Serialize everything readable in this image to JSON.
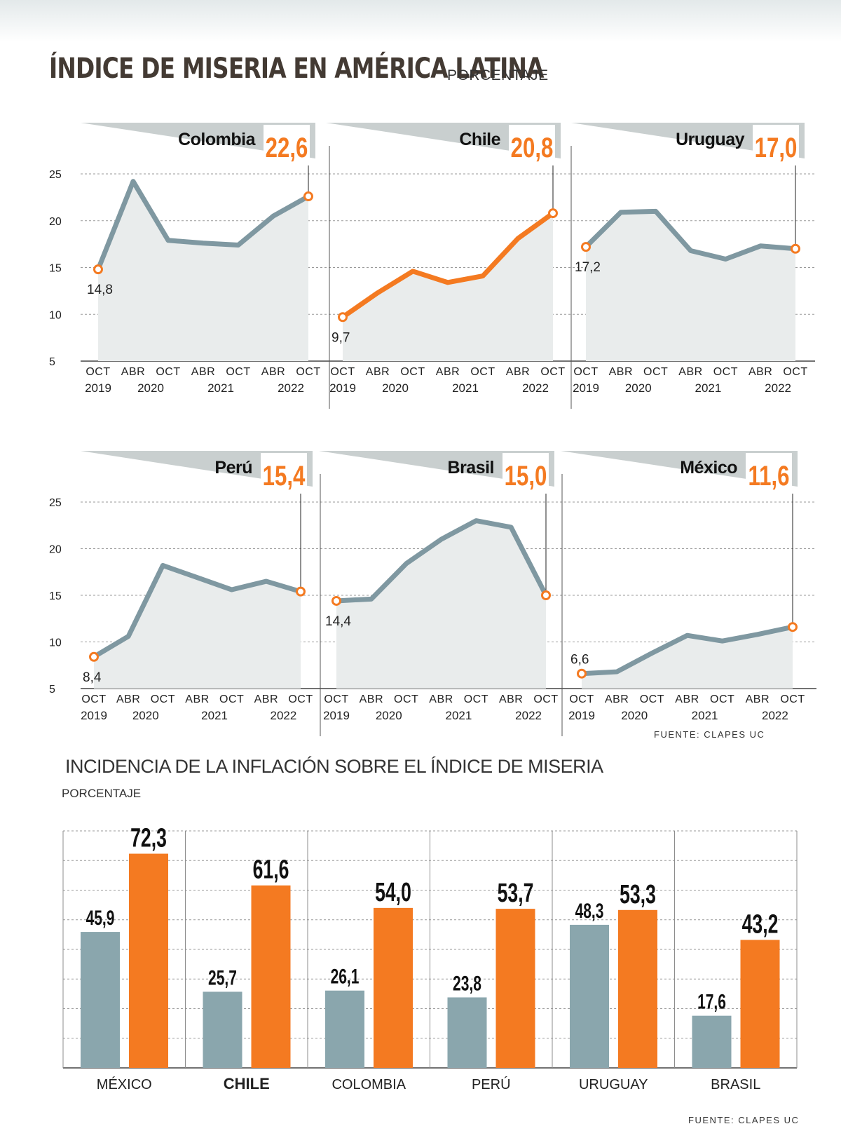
{
  "header": {
    "title": "ÍNDICE DE MISERIA EN AMÉRICA LATINA",
    "subtitle": "PORCENTAJE",
    "source_top": "FUENTE: CLAPES UC"
  },
  "colors": {
    "gray_series": "#7f98a1",
    "orange_series": "#f47a21",
    "area_fill": "#e9ecec",
    "banner": "#c9cfcf",
    "bar_gray": "#8aa6ad",
    "bar_orange": "#f47a21"
  },
  "chart_data": [
    {
      "type": "line",
      "panel": "Colombia",
      "current_value": "22,6",
      "x": [
        "OCT 2019",
        "ABR 2020",
        "OCT 2020",
        "ABR 2021",
        "OCT 2021",
        "ABR 2022",
        "OCT 2022"
      ],
      "x_tick_top": [
        "OCT",
        "ABR",
        "OCT",
        "ABR",
        "OCT",
        "ABR",
        "OCT"
      ],
      "x_tick_bottom": [
        "2019",
        "2020",
        "2021",
        "2022"
      ],
      "y_ticks": [
        "25",
        "20",
        "15",
        "10",
        "5"
      ],
      "ylim": [
        5,
        25
      ],
      "values": [
        14.8,
        24.2,
        17.9,
        17.6,
        17.4,
        20.5,
        22.6
      ],
      "start_label": "14,8",
      "line_color": "gray"
    },
    {
      "type": "line",
      "panel": "Chile",
      "current_value": "20,8",
      "x": [
        "OCT 2019",
        "ABR 2020",
        "OCT 2020",
        "ABR 2021",
        "OCT 2021",
        "ABR 2022",
        "OCT 2022"
      ],
      "x_tick_top": [
        "OCT",
        "ABR",
        "OCT",
        "ABR",
        "OCT",
        "ABR",
        "OCT"
      ],
      "x_tick_bottom": [
        "2019",
        "2020",
        "2021",
        "2022"
      ],
      "ylim": [
        5,
        25
      ],
      "values": [
        9.7,
        12.3,
        14.6,
        13.4,
        14.1,
        18.1,
        20.8
      ],
      "start_label": "9,7",
      "line_color": "orange"
    },
    {
      "type": "line",
      "panel": "Uruguay",
      "current_value": "17,0",
      "x": [
        "OCT 2019",
        "ABR 2020",
        "OCT 2020",
        "ABR 2021",
        "OCT 2021",
        "ABR 2022",
        "OCT 2022"
      ],
      "x_tick_top": [
        "OCT",
        "ABR",
        "OCT",
        "ABR",
        "OCT",
        "ABR",
        "OCT"
      ],
      "x_tick_bottom": [
        "2019",
        "2020",
        "2021",
        "2022"
      ],
      "ylim": [
        5,
        25
      ],
      "values": [
        17.2,
        20.9,
        21.0,
        16.8,
        15.9,
        17.3,
        17.0
      ],
      "start_label": "17,2",
      "line_color": "gray"
    },
    {
      "type": "line",
      "panel": "Perú",
      "current_value": "15,4",
      "x": [
        "OCT 2019",
        "ABR 2020",
        "OCT 2020",
        "ABR 2021",
        "OCT 2021",
        "ABR 2022",
        "OCT 2022"
      ],
      "x_tick_top": [
        "OCT",
        "ABR",
        "OCT",
        "ABR",
        "OCT",
        "ABR",
        "OCT"
      ],
      "x_tick_bottom": [
        "2019",
        "2020",
        "2021",
        "2022"
      ],
      "y_ticks": [
        "25",
        "20",
        "15",
        "10",
        "5"
      ],
      "ylim": [
        5,
        25
      ],
      "values": [
        8.4,
        10.6,
        18.2,
        16.9,
        15.6,
        16.5,
        15.4
      ],
      "start_label": "8,4",
      "line_color": "gray"
    },
    {
      "type": "line",
      "panel": "Brasil",
      "current_value": "15,0",
      "x": [
        "OCT 2019",
        "ABR 2020",
        "OCT 2020",
        "ABR 2021",
        "OCT 2021",
        "ABR 2022",
        "OCT 2022"
      ],
      "x_tick_top": [
        "OCT",
        "ABR",
        "OCT",
        "ABR",
        "OCT",
        "ABR",
        "OCT"
      ],
      "x_tick_bottom": [
        "2019",
        "2020",
        "2021",
        "2022"
      ],
      "ylim": [
        5,
        25
      ],
      "values": [
        14.4,
        14.6,
        18.4,
        21.0,
        23.0,
        22.3,
        15.0
      ],
      "start_label": "14,4",
      "line_color": "gray"
    },
    {
      "type": "line",
      "panel": "México",
      "current_value": "11,6",
      "x": [
        "OCT 2019",
        "ABR 2020",
        "OCT 2020",
        "ABR 2021",
        "OCT 2021",
        "ABR 2022",
        "OCT 2022"
      ],
      "x_tick_top": [
        "OCT",
        "ABR",
        "OCT",
        "ABR",
        "OCT",
        "ABR",
        "OCT"
      ],
      "x_tick_bottom": [
        "2019",
        "2020",
        "2021",
        "2022"
      ],
      "ylim": [
        5,
        25
      ],
      "values": [
        6.6,
        6.8,
        8.8,
        10.7,
        10.1,
        10.8,
        11.6
      ],
      "start_label": "6,6",
      "line_color": "gray"
    },
    {
      "type": "bar",
      "title": "INCIDENCIA DE LA INFLACIÓN SOBRE EL ÍNDICE DE MISERIA",
      "subtitle": "PORCENTAJE",
      "categories": [
        "MÉXICO",
        "CHILE",
        "COLOMBIA",
        "PERÚ",
        "URUGUAY",
        "BRASIL"
      ],
      "highlight_category": "CHILE",
      "series": [
        {
          "values": [
            45.9,
            25.7,
            26.1,
            23.8,
            48.3,
            17.6
          ],
          "labels": [
            "45,9",
            "25,7",
            "26,1",
            "23,8",
            "48,3",
            "17,6"
          ],
          "color": "gray"
        },
        {
          "values": [
            72.3,
            61.6,
            54.0,
            53.7,
            53.3,
            43.2
          ],
          "labels": [
            "72,3",
            "61,6",
            "54,0",
            "53,7",
            "53,3",
            "43,2"
          ],
          "color": "orange"
        }
      ],
      "ylim": [
        0,
        80
      ],
      "source": "FUENTE: CLAPES UC"
    }
  ]
}
